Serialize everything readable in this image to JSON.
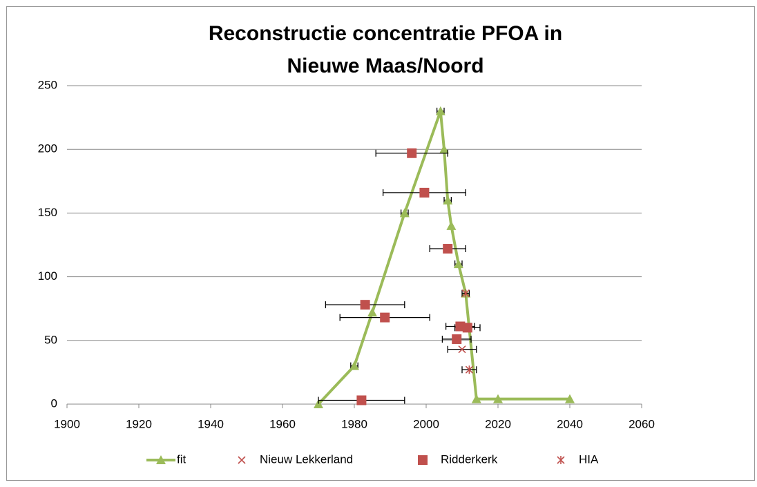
{
  "chart_data": {
    "type": "scatter",
    "title": [
      "Reconstructie concentratie PFOA in",
      "Nieuwe Maas/Noord"
    ],
    "xlim": [
      1900,
      2060
    ],
    "xticks": [
      1900,
      1920,
      1940,
      1960,
      1980,
      2000,
      2020,
      2040,
      2060
    ],
    "ylim": [
      0,
      250
    ],
    "yticks": [
      0,
      50,
      100,
      150,
      200,
      250
    ],
    "grid": true,
    "legend": "bottom",
    "series": [
      {
        "name": "fit",
        "color": "#9bbb59",
        "marker": "triangle",
        "line": true,
        "x": [
          1970,
          1980,
          1985,
          1994,
          2004,
          2005,
          2006,
          2007,
          2009,
          2011,
          2014,
          2020,
          2040
        ],
        "values": [
          0,
          30,
          72,
          150,
          230,
          200,
          160,
          140,
          110,
          87,
          4,
          4,
          4
        ],
        "x_err": [
          null,
          1,
          null,
          1,
          1,
          null,
          1,
          null,
          1,
          null,
          null,
          null,
          null
        ]
      },
      {
        "name": "Nieuw Lekkerland",
        "color": "#c0504d",
        "marker": "x",
        "line": false,
        "x": [
          2010
        ],
        "values": [
          43
        ],
        "x_err": [
          4
        ]
      },
      {
        "name": "Ridderkerk",
        "color": "#c0504d",
        "marker": "square",
        "line": false,
        "x": [
          1996,
          1999.5,
          2006,
          1983,
          1988.5,
          2009.5,
          2011.5,
          2008.5,
          1982
        ],
        "values": [
          197,
          166,
          122,
          78,
          68,
          61,
          60,
          51,
          3
        ],
        "x_err": [
          10,
          11.5,
          5,
          11,
          12.5,
          4,
          3.5,
          4,
          12
        ]
      },
      {
        "name": "HIA",
        "color": "#c0504d",
        "marker": "star",
        "line": false,
        "x": [
          2011,
          2012
        ],
        "values": [
          87,
          27
        ],
        "x_err": [
          1,
          2
        ]
      }
    ]
  }
}
